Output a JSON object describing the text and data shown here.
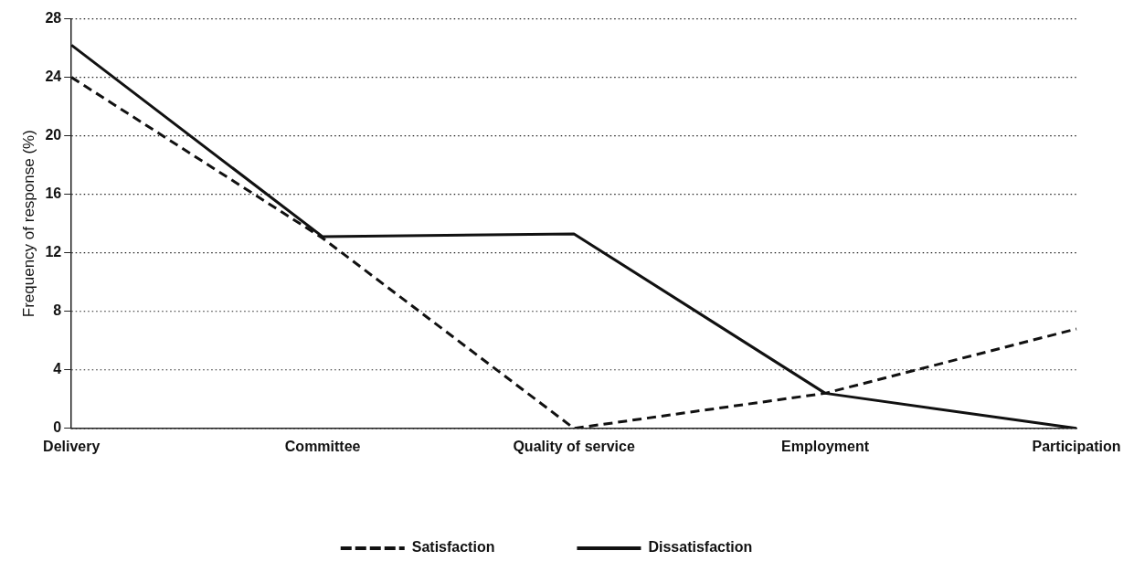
{
  "chart_data": {
    "type": "line",
    "ylabel": "Frequency of response (%)",
    "categories": [
      "Delivery",
      "Committee",
      "Quality of service",
      "Employment",
      "Participation"
    ],
    "series": [
      {
        "name": "Satisfaction",
        "color": "#111111",
        "line_style": "dashed",
        "values": [
          24,
          13,
          0,
          2.4,
          6.8
        ]
      },
      {
        "name": "Dissatisfaction",
        "color": "#111111",
        "line_style": "solid",
        "values": [
          26.2,
          13.1,
          13.3,
          2.4,
          0
        ]
      }
    ],
    "ylim": [
      0,
      28
    ],
    "yticks": [
      0,
      4,
      8,
      12,
      16,
      20,
      24,
      28
    ],
    "grid": "y",
    "legend": "bottom",
    "marker": "none"
  }
}
